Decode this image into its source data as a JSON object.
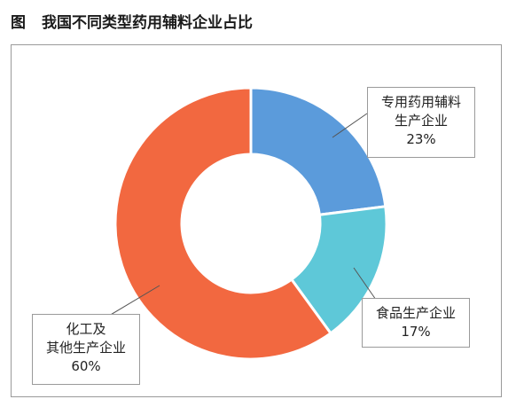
{
  "figure": {
    "prefix": "图",
    "title": "我国不同类型药用辅料企业占比"
  },
  "chart_data": {
    "type": "pie",
    "donut": true,
    "title": "我国不同类型药用辅料企业占比",
    "categories": [
      "专用药用辅料生产企业",
      "食品生产企业",
      "化工及其他生产企业"
    ],
    "values": [
      23,
      17,
      60
    ],
    "unit": "%",
    "colors": [
      "#5b9bdb",
      "#5ec8d8",
      "#f26840"
    ],
    "labels": [
      {
        "lines": [
          "专用药用辅料",
          "生产企业"
        ],
        "pct": "23%"
      },
      {
        "lines": [
          "食品生产企业"
        ],
        "pct": "17%"
      },
      {
        "lines": [
          "化工及",
          "其他生产企业"
        ],
        "pct": "60%"
      }
    ]
  }
}
